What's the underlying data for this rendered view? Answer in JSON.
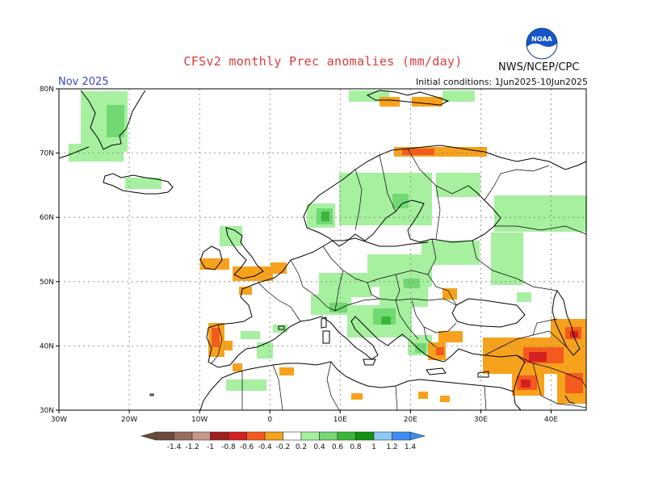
{
  "header": {
    "title": "CFSv2 monthly Prec anomalies (mm/day)",
    "period": "Nov 2025",
    "initial_conditions": "Initial conditions: 1Jun2025-10Jun2025",
    "agency": "NWS/NCEP/CPC",
    "logo_text": "NOAA"
  },
  "map": {
    "lat_labels": [
      "80N",
      "70N",
      "60N",
      "50N",
      "40N",
      "30N"
    ],
    "lon_labels": [
      "30W",
      "20W",
      "10W",
      "0",
      "10E",
      "20E",
      "30E",
      "40E"
    ],
    "extent": {
      "lon": [
        -30,
        45
      ],
      "lat": [
        30,
        80
      ]
    },
    "grid": true,
    "land_color": "#ffffff",
    "ocean_color": "#ffffff"
  },
  "legend": {
    "labels": [
      "-1.4",
      "-1.2",
      "-1",
      "-0.8",
      "-0.6",
      "-0.4",
      "-0.2",
      "0.2",
      "0.4",
      "0.6",
      "0.8",
      "1",
      "1.2",
      "1.4"
    ],
    "colors": [
      "#6b4a3a",
      "#9b6e5c",
      "#c39888",
      "#a21d1d",
      "#d42020",
      "#f45a1e",
      "#f7a21c",
      "#ffffff",
      "#a6f0a0",
      "#72d872",
      "#38b838",
      "#0f920f",
      "#8cc8f5",
      "#3c8ef0"
    ]
  }
}
